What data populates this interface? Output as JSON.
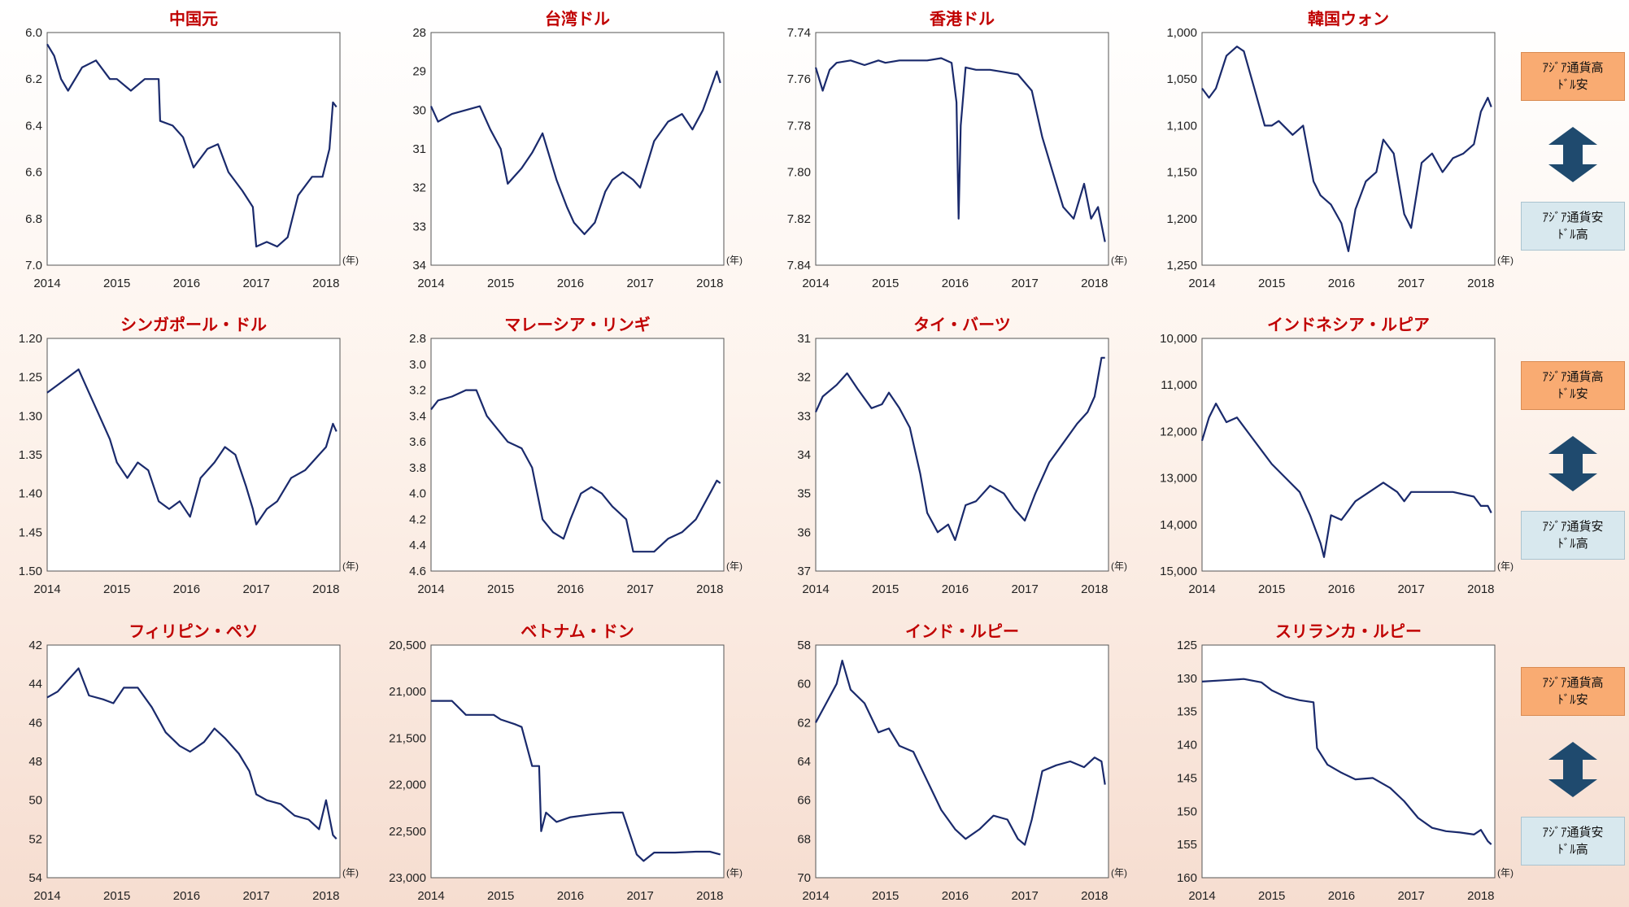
{
  "legend": {
    "high_label": "ｱｼﾞｱ通貨高\nﾄﾞﾙ安",
    "low_label": "ｱｼﾞｱ通貨安\nﾄﾞﾙ高",
    "color_high": "#f9ab72",
    "color_low": "#d8e8ee",
    "arrow_color": "#1f4a6e"
  },
  "line_color": "#1a2a6c",
  "title_color": "#c00000",
  "chart_data": [
    {
      "type": "line",
      "title": "中国元",
      "ylim": [
        7.0,
        6.0
      ],
      "inverted": true,
      "yticks": [
        "6.0",
        "6.2",
        "6.4",
        "6.6",
        "6.8",
        "7.0"
      ],
      "xticks": [
        "2014",
        "2015",
        "2016",
        "2017",
        "2018"
      ],
      "x_unit": "(年)",
      "series": [
        {
          "x": [
            2014.0,
            2014.1,
            2014.2,
            2014.3,
            2014.5,
            2014.7,
            2014.9,
            2015.0,
            2015.2,
            2015.4,
            2015.6,
            2015.62,
            2015.8,
            2015.95,
            2016.1,
            2016.3,
            2016.45,
            2016.6,
            2016.8,
            2016.95,
            2017.0,
            2017.15,
            2017.3,
            2017.45,
            2017.6,
            2017.8,
            2017.95,
            2018.05,
            2018.1,
            2018.15
          ],
          "y": [
            6.05,
            6.1,
            6.2,
            6.25,
            6.15,
            6.12,
            6.2,
            6.2,
            6.25,
            6.2,
            6.2,
            6.38,
            6.4,
            6.45,
            6.58,
            6.5,
            6.48,
            6.6,
            6.68,
            6.75,
            6.92,
            6.9,
            6.92,
            6.88,
            6.7,
            6.62,
            6.62,
            6.5,
            6.3,
            6.32
          ]
        }
      ]
    },
    {
      "type": "line",
      "title": "台湾ドル",
      "ylim": [
        34,
        28
      ],
      "inverted": true,
      "yticks": [
        "28",
        "29",
        "30",
        "31",
        "32",
        "33",
        "34"
      ],
      "xticks": [
        "2014",
        "2015",
        "2016",
        "2017",
        "2018"
      ],
      "x_unit": "(年)",
      "series": [
        {
          "x": [
            2014.0,
            2014.1,
            2014.3,
            2014.5,
            2014.7,
            2014.85,
            2015.0,
            2015.1,
            2015.3,
            2015.45,
            2015.6,
            2015.8,
            2015.95,
            2016.05,
            2016.2,
            2016.35,
            2016.5,
            2016.6,
            2016.75,
            2016.9,
            2017.0,
            2017.2,
            2017.4,
            2017.6,
            2017.75,
            2017.9,
            2018.0,
            2018.1,
            2018.15
          ],
          "y": [
            29.9,
            30.3,
            30.1,
            30.0,
            29.9,
            30.5,
            31.0,
            31.9,
            31.5,
            31.1,
            30.6,
            31.8,
            32.5,
            32.9,
            33.2,
            32.9,
            32.1,
            31.8,
            31.6,
            31.8,
            32.0,
            30.8,
            30.3,
            30.1,
            30.5,
            30.0,
            29.5,
            29.0,
            29.3
          ]
        }
      ]
    },
    {
      "type": "line",
      "title": "香港ドル",
      "ylim": [
        7.84,
        7.74
      ],
      "inverted": true,
      "yticks": [
        "7.74",
        "7.76",
        "7.78",
        "7.80",
        "7.82",
        "7.84"
      ],
      "xticks": [
        "2014",
        "2015",
        "2016",
        "2017",
        "2018"
      ],
      "x_unit": "(年)",
      "series": [
        {
          "x": [
            2014.0,
            2014.1,
            2014.2,
            2014.3,
            2014.5,
            2014.7,
            2014.9,
            2015.0,
            2015.2,
            2015.4,
            2015.6,
            2015.8,
            2015.95,
            2016.02,
            2016.05,
            2016.08,
            2016.15,
            2016.3,
            2016.5,
            2016.7,
            2016.9,
            2017.1,
            2017.25,
            2017.4,
            2017.55,
            2017.7,
            2017.85,
            2017.95,
            2018.05,
            2018.15
          ],
          "y": [
            7.755,
            7.765,
            7.756,
            7.753,
            7.752,
            7.754,
            7.752,
            7.753,
            7.752,
            7.752,
            7.752,
            7.751,
            7.753,
            7.77,
            7.82,
            7.78,
            7.755,
            7.756,
            7.756,
            7.757,
            7.758,
            7.765,
            7.785,
            7.8,
            7.815,
            7.82,
            7.805,
            7.82,
            7.815,
            7.83
          ]
        }
      ]
    },
    {
      "type": "line",
      "title": "韓国ウォン",
      "ylim": [
        1250,
        1000
      ],
      "inverted": true,
      "yticks": [
        "1,000",
        "1,050",
        "1,100",
        "1,150",
        "1,200",
        "1,250"
      ],
      "xticks": [
        "2014",
        "2015",
        "2016",
        "2017",
        "2018"
      ],
      "x_unit": "(年)",
      "series": [
        {
          "x": [
            2014.0,
            2014.1,
            2014.2,
            2014.35,
            2014.5,
            2014.6,
            2014.75,
            2014.9,
            2015.0,
            2015.1,
            2015.3,
            2015.45,
            2015.6,
            2015.7,
            2015.85,
            2016.0,
            2016.1,
            2016.2,
            2016.35,
            2016.5,
            2016.6,
            2016.75,
            2016.9,
            2017.0,
            2017.15,
            2017.3,
            2017.45,
            2017.6,
            2017.75,
            2017.9,
            2018.0,
            2018.1,
            2018.15
          ],
          "y": [
            1060,
            1070,
            1060,
            1025,
            1015,
            1020,
            1060,
            1100,
            1100,
            1095,
            1110,
            1100,
            1160,
            1175,
            1185,
            1205,
            1235,
            1190,
            1160,
            1150,
            1115,
            1130,
            1195,
            1210,
            1140,
            1130,
            1150,
            1135,
            1130,
            1120,
            1085,
            1070,
            1080
          ]
        }
      ]
    },
    {
      "type": "line",
      "title": "シンガポール・ドル",
      "ylim": [
        1.5,
        1.2
      ],
      "inverted": true,
      "yticks": [
        "1.20",
        "1.25",
        "1.30",
        "1.35",
        "1.40",
        "1.45",
        "1.50"
      ],
      "xticks": [
        "2014",
        "2015",
        "2016",
        "2017",
        "2018"
      ],
      "x_unit": "(年)",
      "series": [
        {
          "x": [
            2014.0,
            2014.15,
            2014.3,
            2014.45,
            2014.6,
            2014.75,
            2014.9,
            2015.0,
            2015.15,
            2015.3,
            2015.45,
            2015.6,
            2015.75,
            2015.9,
            2016.05,
            2016.2,
            2016.4,
            2016.55,
            2016.7,
            2016.85,
            2016.95,
            2017.0,
            2017.15,
            2017.3,
            2017.5,
            2017.7,
            2017.9,
            2018.0,
            2018.1,
            2018.15
          ],
          "y": [
            1.27,
            1.26,
            1.25,
            1.24,
            1.27,
            1.3,
            1.33,
            1.36,
            1.38,
            1.36,
            1.37,
            1.41,
            1.42,
            1.41,
            1.43,
            1.38,
            1.36,
            1.34,
            1.35,
            1.39,
            1.42,
            1.44,
            1.42,
            1.41,
            1.38,
            1.37,
            1.35,
            1.34,
            1.31,
            1.32
          ]
        }
      ]
    },
    {
      "type": "line",
      "title": "マレーシア・リンギ",
      "ylim": [
        4.6,
        2.8
      ],
      "inverted": true,
      "yticks": [
        "2.8",
        "3.0",
        "3.2",
        "3.4",
        "3.6",
        "3.8",
        "4.0",
        "4.2",
        "4.4",
        "4.6"
      ],
      "xticks": [
        "2014",
        "2015",
        "2016",
        "2017",
        "2018"
      ],
      "x_unit": "(年)",
      "series": [
        {
          "x": [
            2014.0,
            2014.1,
            2014.3,
            2014.5,
            2014.65,
            2014.8,
            2014.95,
            2015.1,
            2015.3,
            2015.45,
            2015.6,
            2015.75,
            2015.9,
            2016.0,
            2016.15,
            2016.3,
            2016.45,
            2016.6,
            2016.8,
            2016.9,
            2017.0,
            2017.2,
            2017.4,
            2017.6,
            2017.8,
            2018.0,
            2018.1,
            2018.15
          ],
          "y": [
            3.35,
            3.28,
            3.25,
            3.2,
            3.2,
            3.4,
            3.5,
            3.6,
            3.65,
            3.8,
            4.2,
            4.3,
            4.35,
            4.2,
            4.0,
            3.95,
            4.0,
            4.1,
            4.2,
            4.45,
            4.45,
            4.45,
            4.35,
            4.3,
            4.2,
            4.0,
            3.9,
            3.92
          ]
        }
      ]
    },
    {
      "type": "line",
      "title": "タイ・バーツ",
      "ylim": [
        37,
        31
      ],
      "inverted": true,
      "yticks": [
        "31",
        "32",
        "33",
        "34",
        "35",
        "36",
        "37"
      ],
      "xticks": [
        "2014",
        "2015",
        "2016",
        "2017",
        "2018"
      ],
      "x_unit": "(年)",
      "series": [
        {
          "x": [
            2014.0,
            2014.1,
            2014.3,
            2014.45,
            2014.6,
            2014.8,
            2014.95,
            2015.05,
            2015.2,
            2015.35,
            2015.5,
            2015.6,
            2015.75,
            2015.9,
            2016.0,
            2016.15,
            2016.3,
            2016.5,
            2016.7,
            2016.85,
            2017.0,
            2017.15,
            2017.35,
            2017.55,
            2017.75,
            2017.9,
            2018.0,
            2018.1,
            2018.15
          ],
          "y": [
            32.9,
            32.5,
            32.2,
            31.9,
            32.3,
            32.8,
            32.7,
            32.4,
            32.8,
            33.3,
            34.5,
            35.5,
            36.0,
            35.8,
            36.2,
            35.3,
            35.2,
            34.8,
            35.0,
            35.4,
            35.7,
            35.0,
            34.2,
            33.7,
            33.2,
            32.9,
            32.5,
            31.5,
            31.5
          ]
        }
      ]
    },
    {
      "type": "line",
      "title": "インドネシア・ルピア",
      "ylim": [
        15000,
        10000
      ],
      "inverted": true,
      "yticks": [
        "10,000",
        "11,000",
        "12,000",
        "13,000",
        "14,000",
        "15,000"
      ],
      "xticks": [
        "2014",
        "2015",
        "2016",
        "2017",
        "2018"
      ],
      "x_unit": "(年)",
      "series": [
        {
          "x": [
            2014.0,
            2014.1,
            2014.2,
            2014.35,
            2014.5,
            2014.7,
            2014.85,
            2015.0,
            2015.2,
            2015.4,
            2015.55,
            2015.7,
            2015.75,
            2015.85,
            2016.0,
            2016.2,
            2016.4,
            2016.6,
            2016.8,
            2016.9,
            2017.0,
            2017.3,
            2017.6,
            2017.9,
            2018.0,
            2018.1,
            2018.15
          ],
          "y": [
            12200,
            11700,
            11400,
            11800,
            11700,
            12100,
            12400,
            12700,
            13000,
            13300,
            13800,
            14400,
            14700,
            13800,
            13900,
            13500,
            13300,
            13100,
            13300,
            13500,
            13300,
            13300,
            13300,
            13400,
            13600,
            13600,
            13750
          ]
        }
      ]
    },
    {
      "type": "line",
      "title": "フィリピン・ペソ",
      "ylim": [
        54,
        42
      ],
      "inverted": true,
      "yticks": [
        "42",
        "44",
        "46",
        "48",
        "50",
        "52",
        "54"
      ],
      "xticks": [
        "2014",
        "2015",
        "2016",
        "2017",
        "2018"
      ],
      "x_unit": "(年)",
      "series": [
        {
          "x": [
            2014.0,
            2014.15,
            2014.3,
            2014.45,
            2014.6,
            2014.8,
            2014.95,
            2015.1,
            2015.3,
            2015.5,
            2015.7,
            2015.9,
            2016.05,
            2016.25,
            2016.4,
            2016.55,
            2016.75,
            2016.9,
            2017.0,
            2017.15,
            2017.35,
            2017.55,
            2017.75,
            2017.9,
            2018.0,
            2018.1,
            2018.15
          ],
          "y": [
            44.7,
            44.4,
            43.8,
            43.2,
            44.6,
            44.8,
            45.0,
            44.2,
            44.2,
            45.2,
            46.5,
            47.2,
            47.5,
            47.0,
            46.3,
            46.8,
            47.6,
            48.5,
            49.7,
            50.0,
            50.2,
            50.8,
            51.0,
            51.5,
            50.0,
            51.8,
            52.0
          ]
        }
      ]
    },
    {
      "type": "line",
      "title": "ベトナム・ドン",
      "ylim": [
        23000,
        20500
      ],
      "inverted": true,
      "yticks": [
        "20,500",
        "21,000",
        "21,500",
        "22,000",
        "22,500",
        "23,000"
      ],
      "xticks": [
        "2014",
        "2015",
        "2016",
        "2017",
        "2018"
      ],
      "x_unit": "(年)",
      "series": [
        {
          "x": [
            2014.0,
            2014.3,
            2014.5,
            2014.9,
            2015.0,
            2015.2,
            2015.3,
            2015.45,
            2015.55,
            2015.58,
            2015.65,
            2015.8,
            2016.0,
            2016.3,
            2016.6,
            2016.75,
            2016.95,
            2017.05,
            2017.2,
            2017.5,
            2017.8,
            2018.0,
            2018.15
          ],
          "y": [
            21100,
            21100,
            21250,
            21250,
            21300,
            21350,
            21380,
            21800,
            21800,
            22500,
            22300,
            22400,
            22350,
            22320,
            22300,
            22300,
            22750,
            22820,
            22730,
            22730,
            22720,
            22720,
            22750
          ]
        }
      ]
    },
    {
      "type": "line",
      "title": "インド・ルピー",
      "ylim": [
        70,
        58
      ],
      "inverted": true,
      "yticks": [
        "58",
        "60",
        "62",
        "64",
        "66",
        "68",
        "70"
      ],
      "xticks": [
        "2014",
        "2015",
        "2016",
        "2017",
        "2018"
      ],
      "x_unit": "(年)",
      "series": [
        {
          "x": [
            2014.0,
            2014.15,
            2014.3,
            2014.38,
            2014.5,
            2014.7,
            2014.9,
            2015.05,
            2015.2,
            2015.4,
            2015.6,
            2015.8,
            2016.0,
            2016.15,
            2016.35,
            2016.55,
            2016.75,
            2016.9,
            2017.0,
            2017.1,
            2017.25,
            2017.45,
            2017.65,
            2017.85,
            2018.0,
            2018.1,
            2018.15
          ],
          "y": [
            62.0,
            61.0,
            60.0,
            58.8,
            60.3,
            61.0,
            62.5,
            62.3,
            63.2,
            63.5,
            65.0,
            66.5,
            67.5,
            68.0,
            67.5,
            66.8,
            67.0,
            68.0,
            68.3,
            67.0,
            64.5,
            64.2,
            64.0,
            64.3,
            63.8,
            64.0,
            65.2
          ]
        }
      ]
    },
    {
      "type": "line",
      "title": "スリランカ・ルピー",
      "ylim": [
        160,
        125
      ],
      "inverted": true,
      "yticks": [
        "125",
        "130",
        "135",
        "140",
        "145",
        "150",
        "155",
        "160"
      ],
      "xticks": [
        "2014",
        "2015",
        "2016",
        "2017",
        "2018"
      ],
      "x_unit": "(年)",
      "series": [
        {
          "x": [
            2014.0,
            2014.3,
            2014.6,
            2014.85,
            2015.0,
            2015.2,
            2015.4,
            2015.6,
            2015.65,
            2015.8,
            2016.0,
            2016.2,
            2016.45,
            2016.7,
            2016.9,
            2017.1,
            2017.3,
            2017.5,
            2017.7,
            2017.9,
            2018.0,
            2018.1,
            2018.15
          ],
          "y": [
            130.5,
            130.3,
            130.1,
            130.6,
            131.8,
            132.8,
            133.3,
            133.6,
            140.5,
            143.0,
            144.2,
            145.2,
            145.0,
            146.5,
            148.5,
            151.0,
            152.5,
            153.0,
            153.2,
            153.5,
            152.8,
            154.5,
            155.0
          ]
        }
      ]
    }
  ]
}
